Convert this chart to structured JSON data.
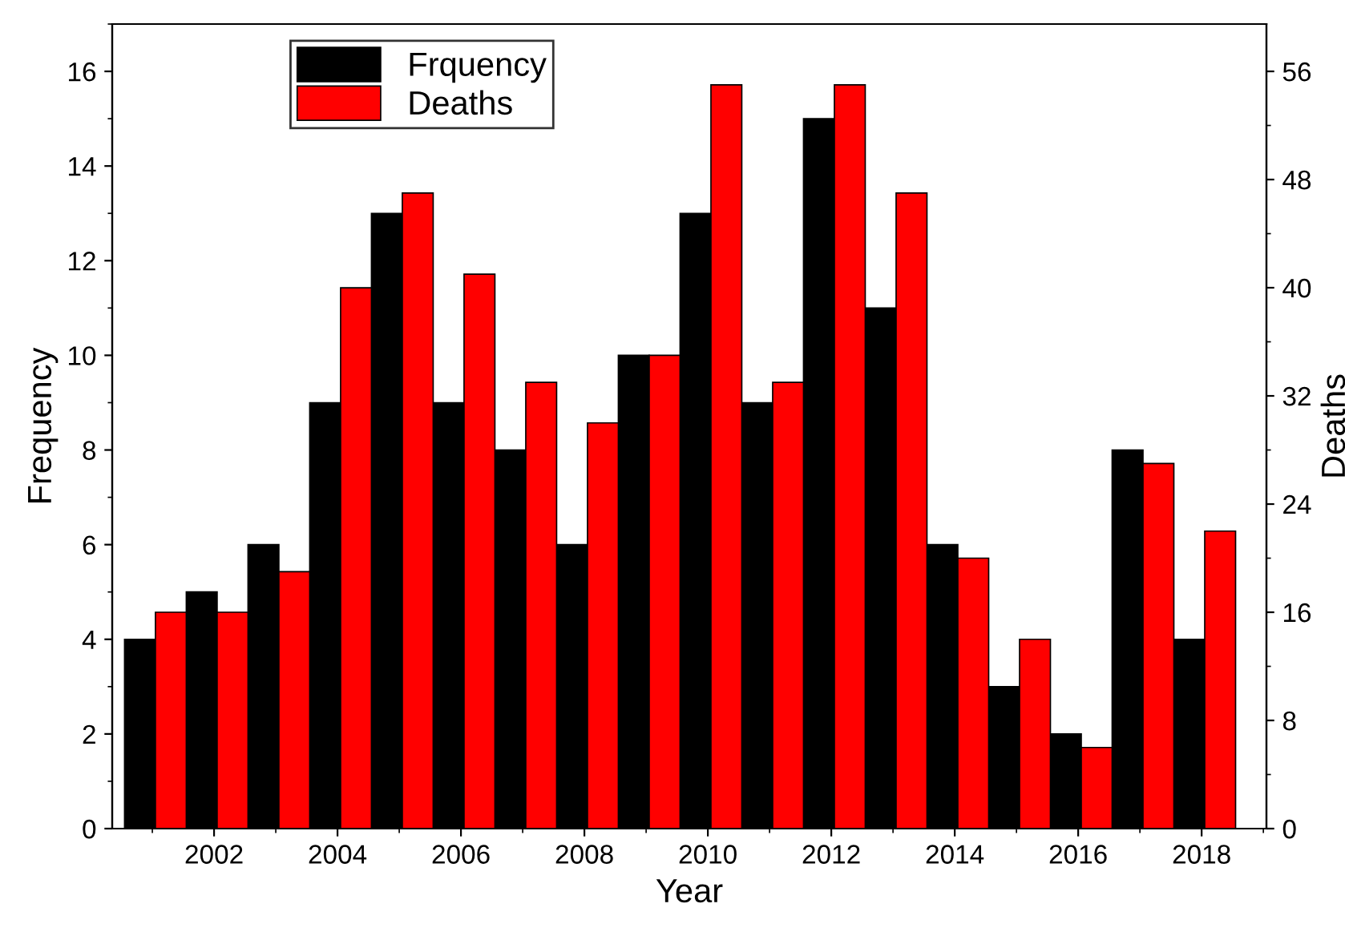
{
  "chart_data": {
    "type": "bar",
    "xlabel": "Year",
    "ylabel": "Frequency",
    "y2label": "Deaths",
    "x": [
      2001,
      2002,
      2003,
      2004,
      2005,
      2006,
      2007,
      2008,
      2009,
      2010,
      2011,
      2012,
      2013,
      2014,
      2015,
      2016,
      2017,
      2018
    ],
    "series": [
      {
        "name": "Frquency",
        "color": "#000000",
        "values": [
          4,
          5,
          6,
          9,
          13,
          9,
          8,
          6,
          10,
          13,
          9,
          15,
          11,
          6,
          3,
          2,
          8,
          4
        ]
      },
      {
        "name": "Deaths",
        "color": "#ff0000",
        "axis": "y2",
        "values": [
          16,
          16,
          19,
          40,
          47,
          41,
          33,
          30,
          35,
          55,
          33,
          55,
          47,
          20,
          14,
          6,
          27,
          22
        ]
      }
    ],
    "xlim": [
      2000.35,
      2019.05
    ],
    "xticks": [
      2002,
      2004,
      2006,
      2008,
      2010,
      2012,
      2014,
      2016,
      2018
    ],
    "ylim": [
      0,
      17
    ],
    "yticks": [
      0,
      2,
      4,
      6,
      8,
      10,
      12,
      14,
      16
    ],
    "y2lim": [
      0,
      59.5
    ],
    "y2ticks": [
      0,
      8,
      16,
      24,
      32,
      40,
      48,
      56
    ],
    "grid": false,
    "legend": "top left"
  }
}
